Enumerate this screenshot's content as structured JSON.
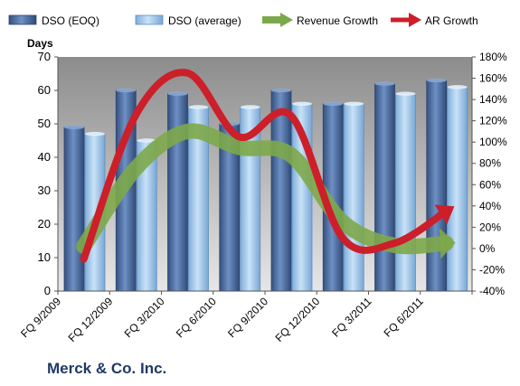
{
  "caption": "Merck & Co. Inc.",
  "chart_data": {
    "type": "bar",
    "title": "",
    "ylabel": "Days",
    "xlabel": "",
    "categories": [
      "FQ 9/2009",
      "FQ 12/2009",
      "FQ 3/2010",
      "FQ 6/2010",
      "FQ 9/2010",
      "FQ 12/2010",
      "FQ 3/2011",
      "FQ 6/2011"
    ],
    "ylim": [
      0,
      70
    ],
    "yticks": [
      "0",
      "10",
      "20",
      "30",
      "40",
      "50",
      "60",
      "70"
    ],
    "y2lim": [
      -40,
      180
    ],
    "y2ticks": [
      "-40%",
      "-20%",
      "0%",
      "20%",
      "40%",
      "60%",
      "80%",
      "100%",
      "120%",
      "140%",
      "160%",
      "180%"
    ],
    "grid": false,
    "legend_position": "top",
    "bar_series": [
      {
        "name": "DSO (EOQ)",
        "color": "#4d6fa6",
        "values": [
          49,
          60,
          59,
          50,
          60,
          56,
          62,
          63
        ]
      },
      {
        "name": "DSO (average)",
        "color": "#9fc6ea",
        "values": [
          47,
          45,
          55,
          55,
          56,
          56,
          59,
          61
        ]
      }
    ],
    "line_series": [
      {
        "name": "Revenue Growth",
        "color": "#7da84a",
        "axis": "right",
        "values": [
          2,
          75,
          110,
          95,
          88,
          25,
          3,
          5
        ]
      },
      {
        "name": "AR Growth",
        "color": "#cc1f2a",
        "axis": "right",
        "values": [
          -10,
          125,
          165,
          105,
          125,
          10,
          5,
          35
        ]
      }
    ]
  }
}
